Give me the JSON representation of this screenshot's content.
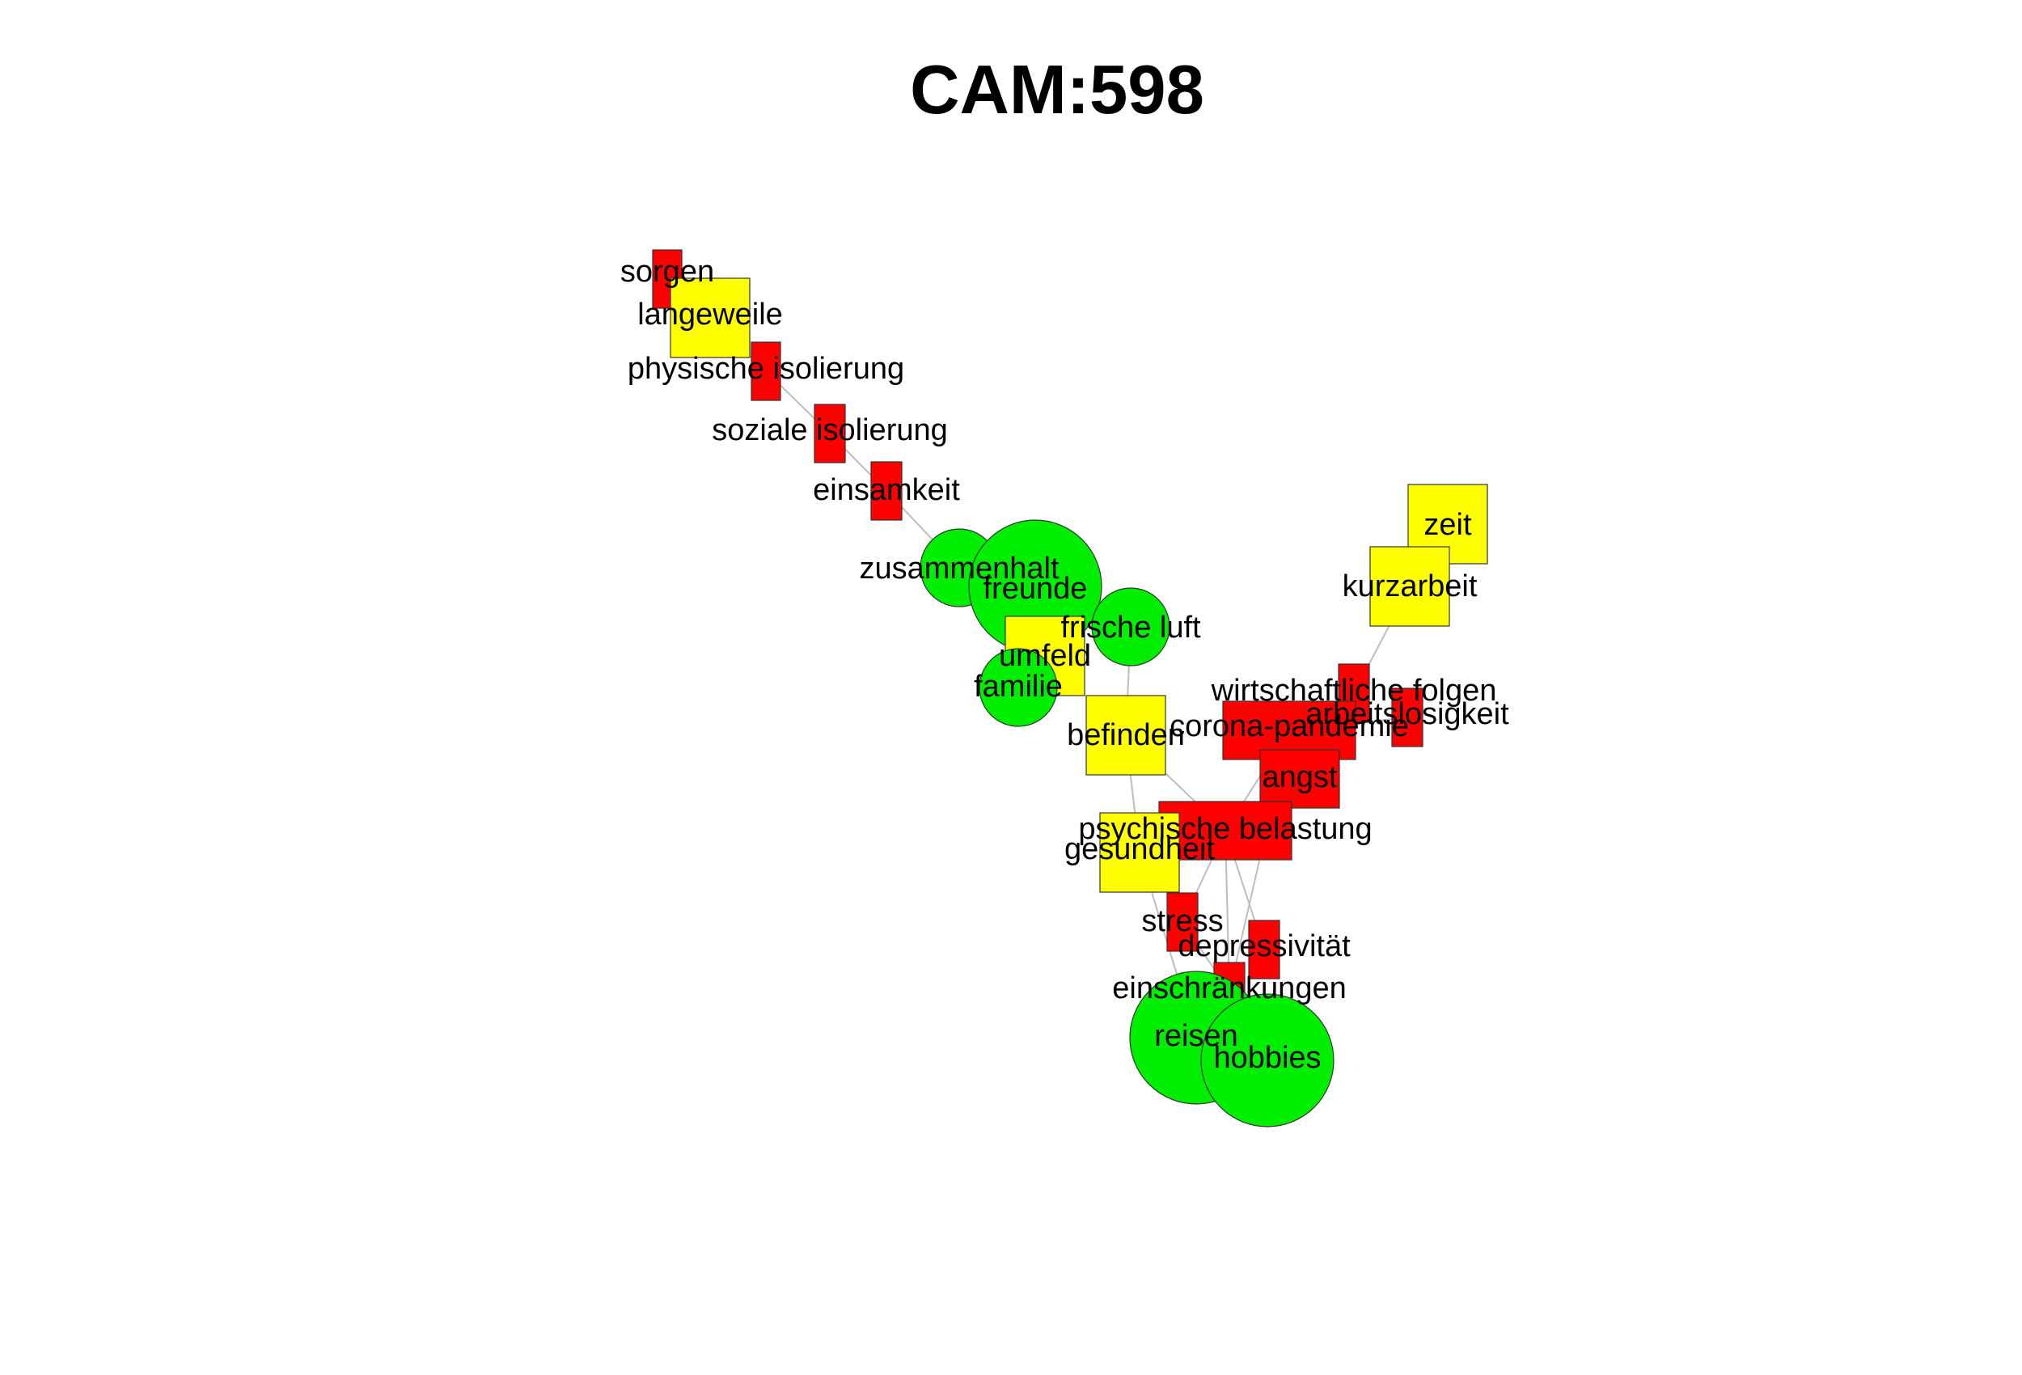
{
  "title": "CAM:598",
  "colors": {
    "positive": "#00ee00",
    "negative": "#ff0000",
    "neutral": "#ffff00",
    "edge": "#bdbdbd"
  },
  "nodes": [
    {
      "id": "sorgen",
      "label": "sorgen",
      "valence": "negative"
    },
    {
      "id": "langeweile",
      "label": "langeweile",
      "valence": "neutral"
    },
    {
      "id": "physische_isolierung",
      "label": "physische isolierung",
      "valence": "negative"
    },
    {
      "id": "soziale_isolierung",
      "label": "soziale isolierung",
      "valence": "negative"
    },
    {
      "id": "einsamkeit",
      "label": "einsamkeit",
      "valence": "negative"
    },
    {
      "id": "zusammenhalt",
      "label": "zusammenhalt",
      "valence": "positive"
    },
    {
      "id": "freunde",
      "label": "freunde",
      "valence": "positive"
    },
    {
      "id": "frische_luft",
      "label": "frische luft",
      "valence": "positive"
    },
    {
      "id": "umfeld",
      "label": "umfeld",
      "valence": "neutral"
    },
    {
      "id": "familie",
      "label": "familie",
      "valence": "positive"
    },
    {
      "id": "befinden",
      "label": "befinden",
      "valence": "neutral"
    },
    {
      "id": "zeit",
      "label": "zeit",
      "valence": "neutral"
    },
    {
      "id": "kurzarbeit",
      "label": "kurzarbeit",
      "valence": "neutral"
    },
    {
      "id": "wirtschaftliche_folgen",
      "label": "wirtschaftliche folgen",
      "valence": "negative"
    },
    {
      "id": "arbeitslosigkeit",
      "label": "arbeitslosigkeit",
      "valence": "negative"
    },
    {
      "id": "corona_pandemie",
      "label": "corona-pandemie",
      "valence": "negative"
    },
    {
      "id": "angst",
      "label": "angst",
      "valence": "negative"
    },
    {
      "id": "psychische_belastung",
      "label": "psychische belastung",
      "valence": "negative"
    },
    {
      "id": "gesundheit",
      "label": "gesundheit",
      "valence": "neutral"
    },
    {
      "id": "stress",
      "label": "stress",
      "valence": "negative"
    },
    {
      "id": "depressivitaet",
      "label": "depressivität",
      "valence": "negative"
    },
    {
      "id": "einschraenkungen",
      "label": "einschränkungen",
      "valence": "negative"
    },
    {
      "id": "reisen",
      "label": "reisen",
      "valence": "positive"
    },
    {
      "id": "hobbies",
      "label": "hobbies",
      "valence": "positive"
    }
  ],
  "edges": [
    [
      "sorgen",
      "langeweile"
    ],
    [
      "langeweile",
      "physische_isolierung"
    ],
    [
      "physische_isolierung",
      "soziale_isolierung"
    ],
    [
      "soziale_isolierung",
      "einsamkeit"
    ],
    [
      "einsamkeit",
      "zusammenhalt"
    ],
    [
      "zusammenhalt",
      "freunde"
    ],
    [
      "freunde",
      "umfeld"
    ],
    [
      "freunde",
      "frische_luft"
    ],
    [
      "umfeld",
      "familie"
    ],
    [
      "frische_luft",
      "befinden"
    ],
    [
      "befinden",
      "psychische_belastung"
    ],
    [
      "befinden",
      "gesundheit"
    ],
    [
      "zeit",
      "kurzarbeit"
    ],
    [
      "kurzarbeit",
      "wirtschaftliche_folgen"
    ],
    [
      "wirtschaftliche_folgen",
      "corona_pandemie"
    ],
    [
      "arbeitslosigkeit",
      "corona_pandemie"
    ],
    [
      "corona_pandemie",
      "angst"
    ],
    [
      "corona_pandemie",
      "psychische_belastung"
    ],
    [
      "angst",
      "psychische_belastung"
    ],
    [
      "psychische_belastung",
      "gesundheit"
    ],
    [
      "psychische_belastung",
      "stress"
    ],
    [
      "psychische_belastung",
      "depressivitaet"
    ],
    [
      "psychische_belastung",
      "einschraenkungen"
    ],
    [
      "stress",
      "einschraenkungen"
    ],
    [
      "gesundheit",
      "reisen"
    ],
    [
      "einschraenkungen",
      "reisen"
    ],
    [
      "einschraenkungen",
      "hobbies"
    ],
    [
      "corona_pandemie",
      "einschraenkungen"
    ]
  ]
}
